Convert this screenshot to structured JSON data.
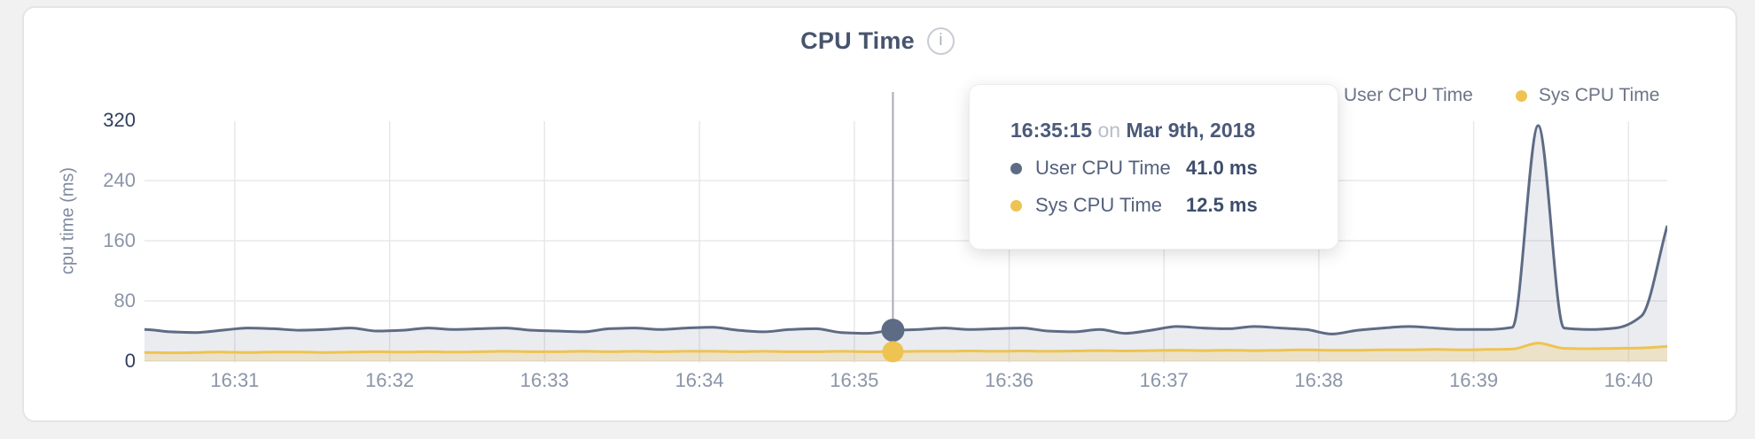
{
  "header": {
    "title": "CPU Time",
    "info_icon": "i"
  },
  "legend": [
    {
      "label": "User CPU Time",
      "color": "#5e6b85"
    },
    {
      "label": "Sys CPU Time",
      "color": "#eec351"
    }
  ],
  "tooltip": {
    "time": "16:35:15",
    "conjunction": "on",
    "date": "Mar 9th, 2018",
    "rows": [
      {
        "label": "User CPU Time",
        "value": "41.0 ms",
        "color": "#5e6b85"
      },
      {
        "label": "Sys CPU Time",
        "value": "12.5 ms",
        "color": "#eec351"
      }
    ]
  },
  "chart_data": {
    "type": "area",
    "title": "CPU Time",
    "xlabel": "",
    "ylabel": "cpu time (ms)",
    "ylim": [
      0,
      320
    ],
    "yticks": [
      0,
      80,
      160,
      240,
      320
    ],
    "grid": true,
    "grid_color": "#e8e8eb",
    "legend_position": "top-right",
    "x_unit": "seconds after 16:30:00 on Mar 9th, 2018 (samples every 10 s)",
    "x_domain_s": [
      25,
      615
    ],
    "xticks": [
      {
        "s": 60,
        "label": "16:31"
      },
      {
        "s": 120,
        "label": "16:32"
      },
      {
        "s": 180,
        "label": "16:33"
      },
      {
        "s": 240,
        "label": "16:34"
      },
      {
        "s": 300,
        "label": "16:35"
      },
      {
        "s": 360,
        "label": "16:36"
      },
      {
        "s": 420,
        "label": "16:37"
      },
      {
        "s": 480,
        "label": "16:38"
      },
      {
        "s": 540,
        "label": "16:39"
      },
      {
        "s": 600,
        "label": "16:40"
      }
    ],
    "x_s": [
      15,
      25,
      35,
      45,
      55,
      65,
      75,
      85,
      95,
      105,
      115,
      125,
      135,
      145,
      155,
      165,
      175,
      185,
      195,
      205,
      215,
      225,
      235,
      245,
      255,
      265,
      275,
      285,
      295,
      305,
      315,
      325,
      335,
      345,
      355,
      365,
      375,
      385,
      395,
      405,
      415,
      425,
      435,
      445,
      455,
      465,
      475,
      485,
      495,
      505,
      515,
      525,
      535,
      545,
      555,
      565,
      575,
      585,
      595,
      605,
      615
    ],
    "series": [
      {
        "name": "User CPU Time",
        "color": "#5e6b85",
        "fill": "rgba(97,110,136,0.13)",
        "values": [
          40,
          42,
          39,
          38,
          41,
          44,
          43,
          41,
          42,
          44,
          40,
          41,
          44,
          42,
          43,
          44,
          41,
          40,
          39,
          43,
          44,
          42,
          44,
          45,
          41,
          39,
          42,
          43,
          38,
          37,
          41,
          42,
          44,
          42,
          43,
          44,
          40,
          39,
          42,
          37,
          41,
          46,
          44,
          43,
          46,
          44,
          42,
          36,
          41,
          44,
          46,
          44,
          42,
          42,
          45,
          313,
          44,
          42,
          44,
          60,
          180
        ]
      },
      {
        "name": "Sys CPU Time",
        "color": "#eec351",
        "fill": "rgba(238,196,84,0.25)",
        "values": [
          11,
          11.5,
          11,
          11.5,
          12,
          11.5,
          12,
          12,
          11.5,
          12,
          12.5,
          12,
          12.5,
          12,
          12.5,
          13,
          12.5,
          12.5,
          13,
          12.5,
          13,
          12.5,
          13,
          13,
          12.5,
          13,
          12.5,
          12.5,
          13,
          12.5,
          12.5,
          13,
          13,
          13.5,
          13,
          13.5,
          13,
          13.5,
          14,
          13.5,
          14,
          14.5,
          14,
          14.5,
          14,
          14.5,
          15,
          14.5,
          14.5,
          15,
          15,
          15.5,
          15,
          15.5,
          16,
          24,
          17,
          16.5,
          17,
          17.5,
          19.5
        ]
      }
    ],
    "hover": {
      "x_s": 315,
      "time": "16:35:15",
      "values": [
        41.0,
        12.5
      ],
      "line_color": "#a9acb4"
    }
  }
}
